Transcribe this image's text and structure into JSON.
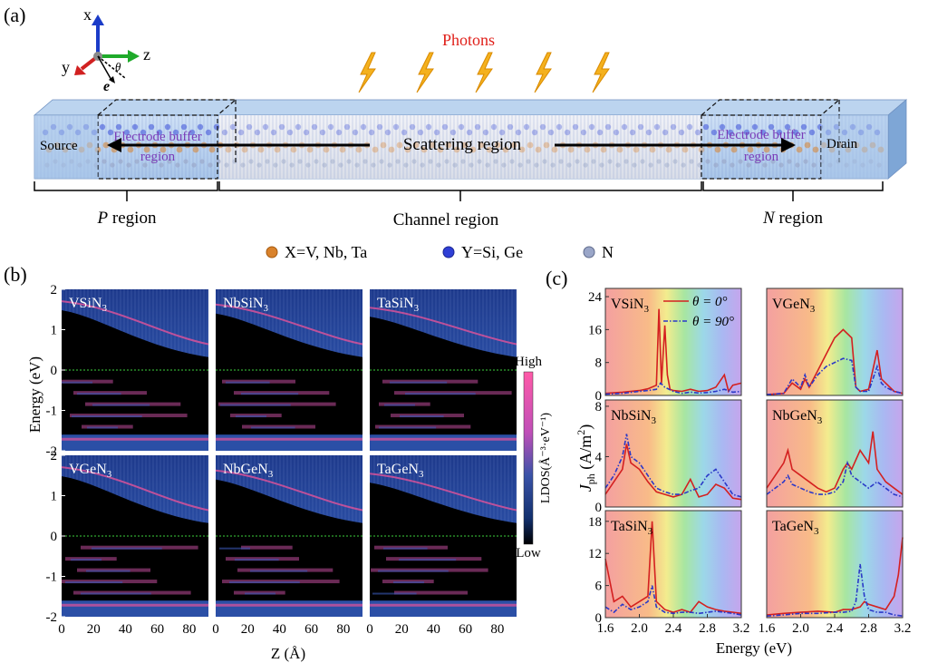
{
  "panel_a": {
    "label": "(a)",
    "photons_label": "Photons",
    "axes": {
      "x": "x",
      "y": "y",
      "z": "z",
      "theta": "θ",
      "e": "e"
    },
    "source": "Source",
    "drain": "Drain",
    "buffer_left": [
      "Electrode buffer",
      "region"
    ],
    "buffer_right": [
      "Electrode buffer",
      "region"
    ],
    "scattering": "Scattering region",
    "p_region": {
      "italic": "P",
      "rest": " region"
    },
    "channel_region": "Channel region",
    "n_region": {
      "italic": "N",
      "rest": " region"
    },
    "legend": [
      {
        "label": "X=V, Nb, Ta",
        "color": "#d9822b"
      },
      {
        "label": "Y=Si, Ge",
        "color": "#2f3fd6"
      },
      {
        "label": "N",
        "color": "#9aa6c8"
      }
    ]
  },
  "panel_b": {
    "label": "(b)",
    "ylabel": "Energy (eV)",
    "xlabel": "Z (Å)",
    "yticks": [
      "2",
      "1",
      "0",
      "-1",
      "-2"
    ],
    "xticks": [
      "0",
      "20",
      "40",
      "60",
      "80"
    ],
    "colorbar": {
      "high": "High",
      "low": "Low",
      "label": "LDOS(Å⁻³·eV⁻¹)"
    },
    "maps": [
      {
        "compound": "VSiN",
        "sub": "3"
      },
      {
        "compound": "NbSiN",
        "sub": "3"
      },
      {
        "compound": "TaSiN",
        "sub": "3"
      },
      {
        "compound": "VGeN",
        "sub": "3"
      },
      {
        "compound": "NbGeN",
        "sub": "3"
      },
      {
        "compound": "TaGeN",
        "sub": "3"
      }
    ]
  },
  "panel_c": {
    "label": "(c)",
    "ylabel_main": "J",
    "ylabel_sub": "ph",
    "ylabel_unit": " (A/m",
    "ylabel_sup": "2",
    "ylabel_close": ")",
    "xlabel": "Energy (eV)",
    "legend": [
      {
        "label": "θ = 0°",
        "color": "#d42020"
      },
      {
        "label": "θ = 90°",
        "color": "#2a38c8"
      }
    ],
    "xticks": [
      "1.6",
      "2.0",
      "2.4",
      "2.8",
      "3.2"
    ],
    "rows_yticks": [
      [
        "24",
        "16",
        "8",
        "0"
      ],
      [
        "8",
        "4",
        "0"
      ],
      [
        "18",
        "12",
        "6",
        "0"
      ]
    ]
  },
  "chart_data": [
    {
      "type": "line",
      "panel": "(c) VSiN3",
      "xlim": [
        1.6,
        3.2
      ],
      "ylim": [
        0,
        26
      ],
      "series": [
        {
          "name": "θ = 0°",
          "x": [
            1.6,
            1.8,
            2.0,
            2.1,
            2.2,
            2.23,
            2.26,
            2.3,
            2.33,
            2.36,
            2.4,
            2.5,
            2.6,
            2.7,
            2.8,
            2.9,
            3.0,
            3.05,
            3.1,
            3.2
          ],
          "y": [
            0.5,
            0.8,
            1.2,
            1.6,
            2.5,
            21,
            3,
            17,
            5,
            1.5,
            1.2,
            1,
            1.5,
            1,
            1.2,
            2,
            5,
            1,
            2.5,
            3
          ]
        },
        {
          "name": "θ = 90°",
          "x": [
            1.6,
            1.8,
            2.0,
            2.1,
            2.2,
            2.25,
            2.3,
            2.4,
            2.5,
            2.6,
            2.7,
            2.8,
            2.9,
            3.0,
            3.1,
            3.2
          ],
          "y": [
            0.3,
            0.5,
            1,
            1.2,
            1.5,
            3,
            2,
            1,
            0.5,
            0.8,
            0.6,
            0.7,
            1,
            1.5,
            0.8,
            1
          ]
        }
      ]
    },
    {
      "type": "line",
      "panel": "(c) VGeN3",
      "xlim": [
        1.6,
        3.2
      ],
      "ylim": [
        0,
        26
      ],
      "series": [
        {
          "name": "θ = 0°",
          "x": [
            1.6,
            1.8,
            1.9,
            2.0,
            2.05,
            2.1,
            2.2,
            2.3,
            2.4,
            2.5,
            2.6,
            2.65,
            2.7,
            2.8,
            2.9,
            2.95,
            3.0,
            3.1,
            3.2
          ],
          "y": [
            0.2,
            0.5,
            3,
            1.5,
            4,
            2,
            6,
            10,
            14,
            16,
            14,
            2,
            1,
            1.5,
            11,
            4,
            3,
            1,
            0.5
          ]
        },
        {
          "name": "θ = 90°",
          "x": [
            1.6,
            1.8,
            1.9,
            2.0,
            2.05,
            2.1,
            2.2,
            2.3,
            2.4,
            2.5,
            2.6,
            2.65,
            2.7,
            2.8,
            2.9,
            2.95,
            3.0,
            3.1,
            3.2
          ],
          "y": [
            0.2,
            0.5,
            4,
            2,
            5,
            2,
            5,
            7,
            8,
            9,
            8.5,
            2,
            1,
            1,
            7,
            3,
            2,
            1,
            0.5
          ]
        }
      ]
    },
    {
      "type": "line",
      "panel": "(c) NbSiN3",
      "xlim": [
        1.6,
        3.2
      ],
      "ylim": [
        0,
        8.5
      ],
      "series": [
        {
          "name": "θ = 0°",
          "x": [
            1.6,
            1.7,
            1.8,
            1.85,
            1.9,
            2.0,
            2.1,
            2.2,
            2.3,
            2.4,
            2.5,
            2.6,
            2.65,
            2.7,
            2.8,
            2.9,
            3.0,
            3.1,
            3.2
          ],
          "y": [
            1,
            2,
            3,
            5,
            3.5,
            3,
            2,
            1.2,
            1,
            0.8,
            1,
            2.2,
            1.5,
            0.8,
            1,
            1.8,
            1.5,
            0.7,
            0.6
          ]
        },
        {
          "name": "θ = 90°",
          "x": [
            1.6,
            1.7,
            1.8,
            1.85,
            1.9,
            2.0,
            2.1,
            2.2,
            2.3,
            2.4,
            2.5,
            2.6,
            2.7,
            2.8,
            2.9,
            3.0,
            3.1,
            3.2
          ],
          "y": [
            1.5,
            2.5,
            4,
            5.8,
            4,
            3.5,
            2.5,
            1.5,
            1.2,
            1,
            1,
            1.3,
            1.5,
            2.5,
            3,
            2,
            1,
            0.8
          ]
        }
      ]
    },
    {
      "type": "line",
      "panel": "(c) NbGeN3",
      "xlim": [
        1.6,
        3.2
      ],
      "ylim": [
        0,
        8.5
      ],
      "series": [
        {
          "name": "θ = 0°",
          "x": [
            1.6,
            1.7,
            1.8,
            1.85,
            1.9,
            2.0,
            2.1,
            2.2,
            2.3,
            2.4,
            2.5,
            2.55,
            2.6,
            2.7,
            2.8,
            2.85,
            2.9,
            3.0,
            3.1,
            3.2
          ],
          "y": [
            1.5,
            2.5,
            3.5,
            4.5,
            3,
            2.5,
            2,
            1.5,
            1.2,
            1.5,
            3,
            3.5,
            3,
            4.5,
            3.5,
            6,
            3,
            2,
            1.5,
            1
          ]
        },
        {
          "name": "θ = 90°",
          "x": [
            1.6,
            1.7,
            1.8,
            1.85,
            1.9,
            2.0,
            2.1,
            2.2,
            2.3,
            2.4,
            2.5,
            2.55,
            2.6,
            2.7,
            2.8,
            2.9,
            3.0,
            3.1,
            3.2
          ],
          "y": [
            1,
            1.5,
            2,
            2.5,
            1.8,
            1.5,
            1.2,
            1,
            1,
            1.2,
            2,
            3.5,
            2.5,
            2,
            1.5,
            2,
            1.5,
            1,
            0.8
          ]
        }
      ]
    },
    {
      "type": "line",
      "panel": "(c) TaSiN3",
      "xlim": [
        1.6,
        3.2
      ],
      "ylim": [
        0,
        20
      ],
      "series": [
        {
          "name": "θ = 0°",
          "x": [
            1.6,
            1.7,
            1.8,
            1.9,
            2.0,
            2.1,
            2.15,
            2.2,
            2.3,
            2.4,
            2.5,
            2.6,
            2.7,
            2.8,
            2.9,
            3.0,
            3.1,
            3.2
          ],
          "y": [
            11,
            3,
            4,
            2,
            3,
            4,
            18,
            3,
            1.5,
            1,
            1.5,
            1,
            3,
            2,
            1.5,
            1.2,
            1,
            0.8
          ]
        },
        {
          "name": "θ = 90°",
          "x": [
            1.6,
            1.7,
            1.8,
            1.9,
            2.0,
            2.1,
            2.15,
            2.2,
            2.3,
            2.4,
            2.5,
            2.6,
            2.7,
            2.8,
            2.9,
            3.0,
            3.1,
            3.2
          ],
          "y": [
            2,
            1,
            2.5,
            1.5,
            2,
            3,
            6,
            2,
            1,
            0.8,
            1,
            1,
            0.8,
            1,
            1.2,
            1,
            0.8,
            0.5
          ]
        }
      ]
    },
    {
      "type": "line",
      "panel": "(c) TaGeN3",
      "xlim": [
        1.6,
        3.2
      ],
      "ylim": [
        0,
        20
      ],
      "series": [
        {
          "name": "θ = 0°",
          "x": [
            1.6,
            1.8,
            2.0,
            2.2,
            2.4,
            2.5,
            2.6,
            2.7,
            2.75,
            2.8,
            2.9,
            3.0,
            3.1,
            3.15,
            3.2
          ],
          "y": [
            0.5,
            0.8,
            1,
            1.2,
            1,
            1.5,
            1.5,
            2,
            3,
            2.5,
            2,
            1.5,
            4,
            8,
            15
          ]
        },
        {
          "name": "θ = 90°",
          "x": [
            1.6,
            1.8,
            2.0,
            2.2,
            2.4,
            2.5,
            2.6,
            2.65,
            2.7,
            2.75,
            2.8,
            2.9,
            3.0,
            3.1,
            3.2
          ],
          "y": [
            0.3,
            0.5,
            0.8,
            0.8,
            1,
            1,
            1.2,
            3,
            10,
            4,
            1.5,
            1,
            1,
            0.5,
            0.3
          ]
        }
      ]
    }
  ]
}
